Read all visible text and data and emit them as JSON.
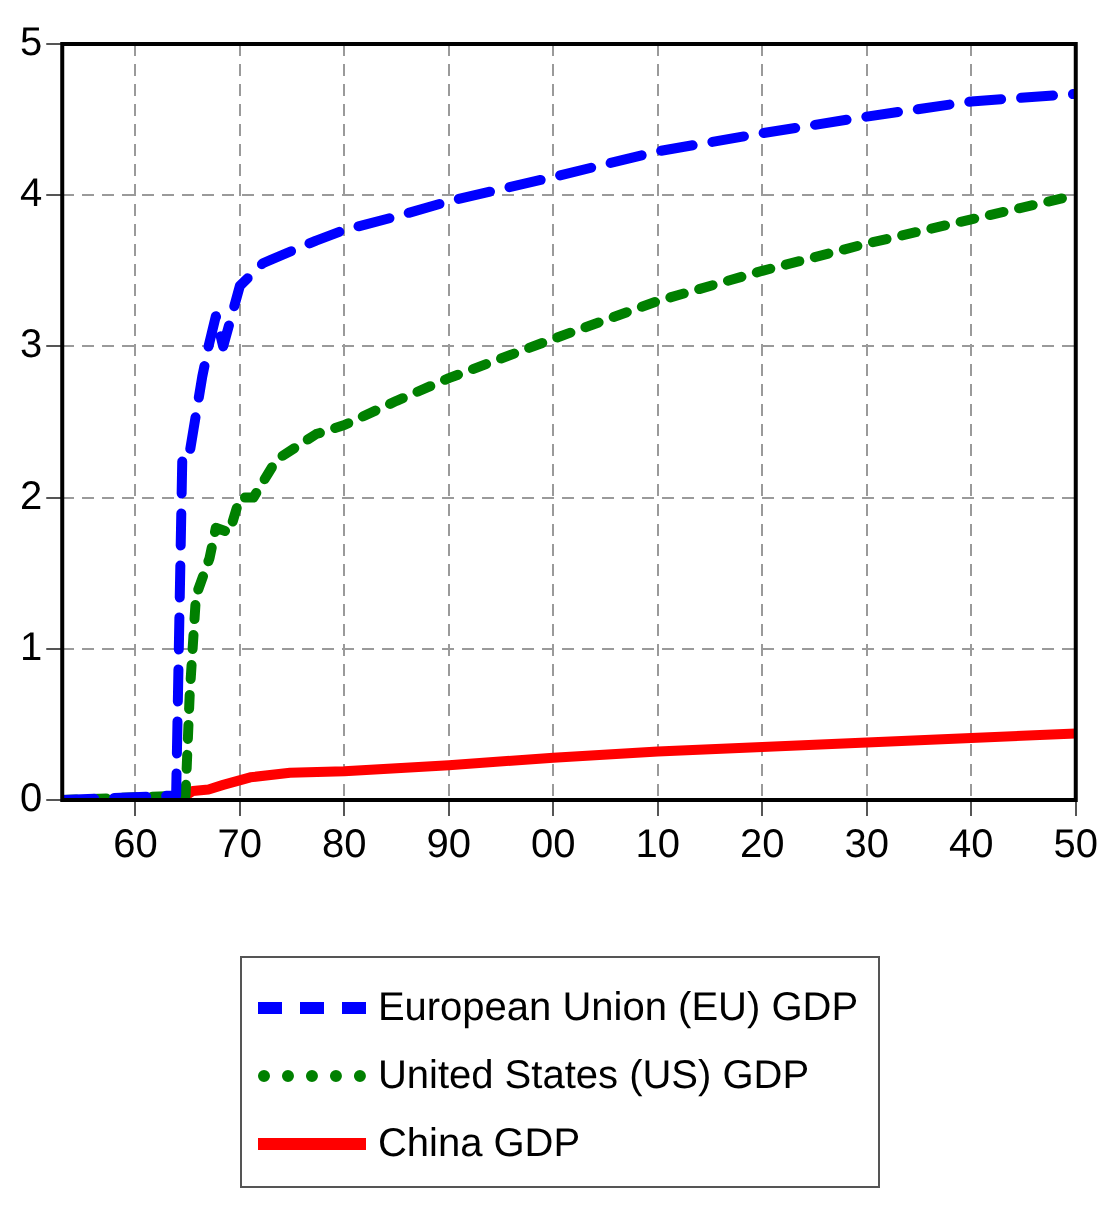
{
  "chart_data": {
    "type": "line",
    "xlim": [
      1953,
      2050
    ],
    "xticks": [
      {
        "value": 1960,
        "label": "60"
      },
      {
        "value": 1970,
        "label": "70"
      },
      {
        "value": 1980,
        "label": "80"
      },
      {
        "value": 1990,
        "label": "90"
      },
      {
        "value": 2000,
        "label": "00"
      },
      {
        "value": 2010,
        "label": "10"
      },
      {
        "value": 2020,
        "label": "20"
      },
      {
        "value": 2030,
        "label": "30"
      },
      {
        "value": 2040,
        "label": "40"
      },
      {
        "value": 2050,
        "label": "50"
      }
    ],
    "ylim": [
      0,
      5
    ],
    "yticks": [
      0,
      1,
      2,
      3,
      4,
      5
    ],
    "grid": true,
    "legend": "bottom",
    "marker": "none",
    "series": [
      {
        "name": "European Union (EU) GDP",
        "color": "#0000ff",
        "line_style": "dashed",
        "x": [
          1953,
          1963.9,
          1964.5,
          1965.2,
          1966.4,
          1967,
          1967.7,
          1968.4,
          1970,
          1972.2,
          1977.3,
          1980,
          1985,
          1990,
          2000,
          2010,
          2020,
          2030,
          2040,
          2050
        ],
        "values": [
          0,
          0.03,
          2.3,
          2.3,
          2.8,
          3.0,
          3.2,
          3.0,
          3.4,
          3.55,
          3.7,
          3.77,
          3.86,
          3.96,
          4.12,
          4.29,
          4.41,
          4.52,
          4.62,
          4.67
        ]
      },
      {
        "name": "United States (US) GDP",
        "color": "#008000",
        "line_style": "dotted",
        "x": [
          1953,
          1964.8,
          1965.2,
          1965.8,
          1967.1,
          1967.7,
          1969,
          1970,
          1971.3,
          1973.5,
          1977.3,
          1980,
          1985,
          1990,
          2000,
          2010,
          2020,
          2030,
          2040,
          2050
        ],
        "values": [
          0,
          0.03,
          0.7,
          1.35,
          1.6,
          1.8,
          1.77,
          2.0,
          2.0,
          2.25,
          2.42,
          2.48,
          2.64,
          2.79,
          3.05,
          3.3,
          3.5,
          3.68,
          3.84,
          4.0
        ]
      },
      {
        "name": "China GDP",
        "color": "#ff0000",
        "line_style": "solid",
        "x": [
          1953,
          1964.2,
          1965.5,
          1967,
          1968.4,
          1971,
          1974.8,
          1980,
          1990,
          2000,
          2010,
          2020,
          2030,
          2040,
          2050
        ],
        "values": [
          0,
          0,
          0.06,
          0.07,
          0.1,
          0.15,
          0.18,
          0.19,
          0.23,
          0.28,
          0.32,
          0.35,
          0.38,
          0.41,
          0.44
        ]
      }
    ]
  }
}
